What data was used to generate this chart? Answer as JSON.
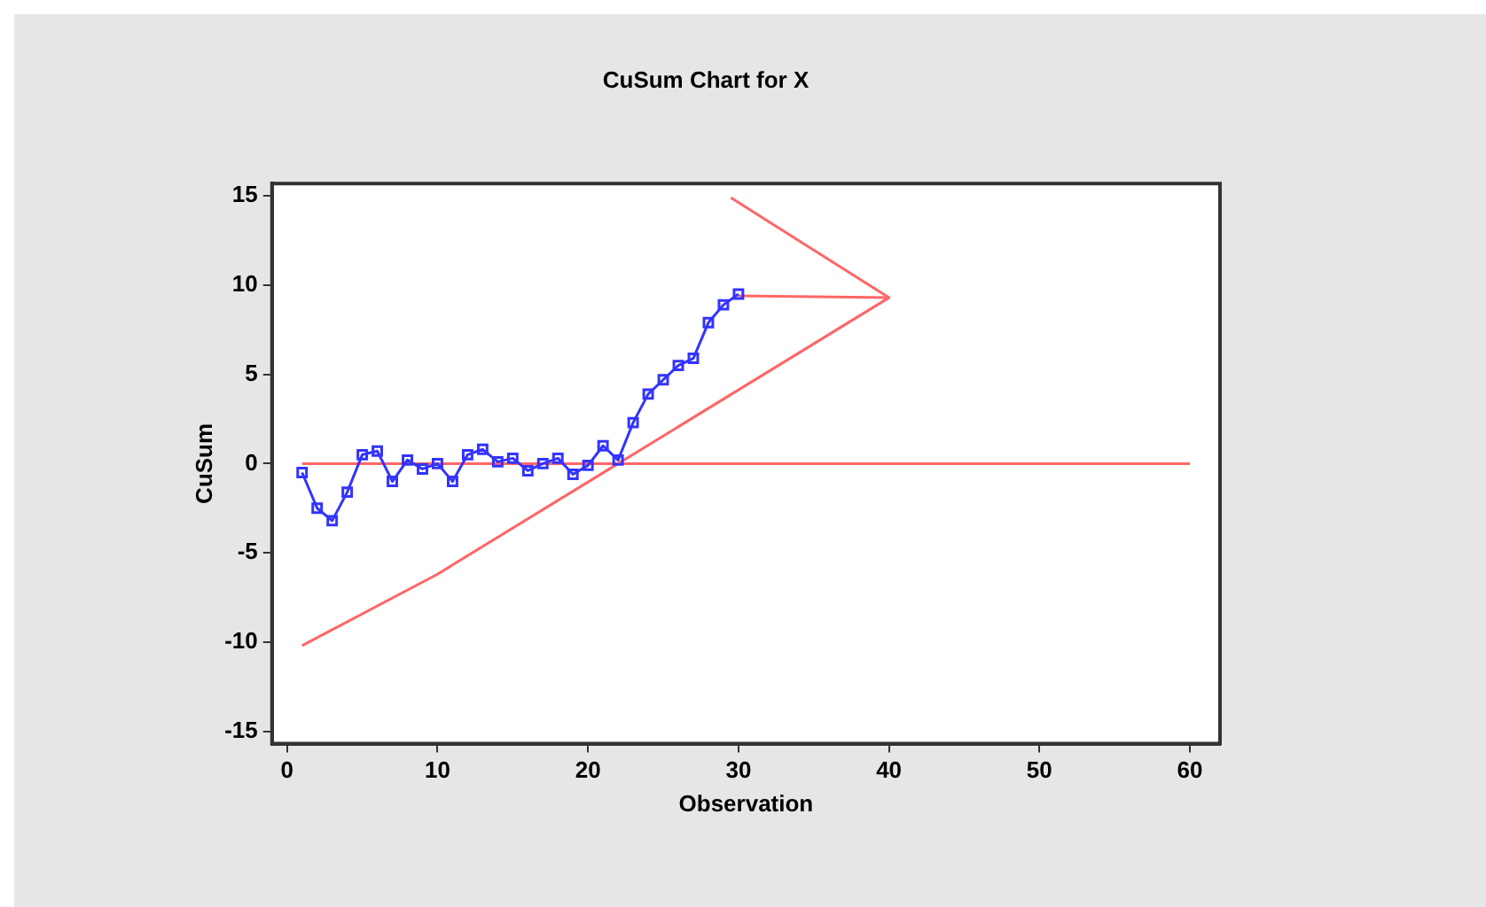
{
  "chart_data": {
    "type": "line",
    "title": "CuSum Chart for X",
    "xlabel": "Observation",
    "ylabel": "CuSum",
    "xlim": [
      -1,
      62
    ],
    "ylim": [
      -15.7,
      15.7
    ],
    "xticks": [
      0,
      10,
      20,
      30,
      40,
      50,
      60
    ],
    "yticks": [
      -15,
      -10,
      -5,
      0,
      5,
      10,
      15
    ],
    "grid": false,
    "legend": false,
    "series": [
      {
        "color": "#3333ff",
        "marker": "square",
        "x": [
          1,
          2,
          3,
          4,
          5,
          6,
          7,
          8,
          9,
          10,
          11,
          12,
          13,
          14,
          15,
          16,
          17,
          18,
          19,
          20,
          21,
          22,
          23,
          24,
          25,
          26,
          27,
          28,
          29,
          30
        ],
        "values": [
          -0.5,
          -2.5,
          -3.2,
          -1.6,
          0.5,
          0.7,
          -1.0,
          0.2,
          -0.3,
          0.0,
          -1.0,
          0.5,
          0.8,
          0.1,
          0.3,
          -0.4,
          0.0,
          0.3,
          -0.6,
          -0.1,
          1.0,
          0.2,
          2.3,
          3.9,
          4.7,
          5.5,
          5.9,
          7.9,
          8.9,
          9.5
        ]
      },
      {
        "color": "#ff6666",
        "marker": "none",
        "x": [
          1,
          60
        ],
        "values": [
          0,
          0
        ]
      },
      {
        "color": "#ff6666",
        "marker": "none",
        "x": [
          29.5,
          40,
          22,
          10,
          1
        ],
        "values": [
          14.9,
          9.3,
          0,
          -6.2,
          -10.2
        ]
      },
      {
        "color": "#ff6666",
        "marker": "none",
        "x": [
          30,
          40
        ],
        "values": [
          9.4,
          9.3
        ]
      }
    ]
  }
}
